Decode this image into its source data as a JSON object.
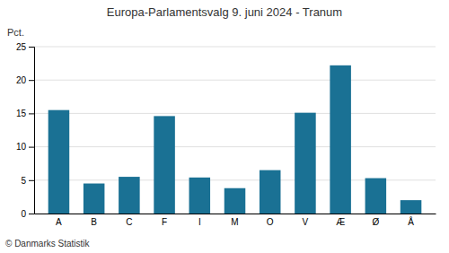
{
  "chart_data": {
    "type": "bar",
    "title": "Europa-Parlamentsvalg 9. juni 2024 - Tranum",
    "ylabel": "Pct.",
    "footer": "© Danmarks Statistik",
    "categories": [
      "A",
      "B",
      "C",
      "F",
      "I",
      "M",
      "O",
      "V",
      "Æ",
      "Ø",
      "Å"
    ],
    "values": [
      15.5,
      4.5,
      5.5,
      14.6,
      5.4,
      3.8,
      6.5,
      15.1,
      22.2,
      5.3,
      2.0
    ],
    "color": "#1a7194",
    "ylim": [
      0,
      25
    ],
    "yticks": [
      0,
      5,
      10,
      15,
      20,
      25
    ],
    "grid": true
  }
}
